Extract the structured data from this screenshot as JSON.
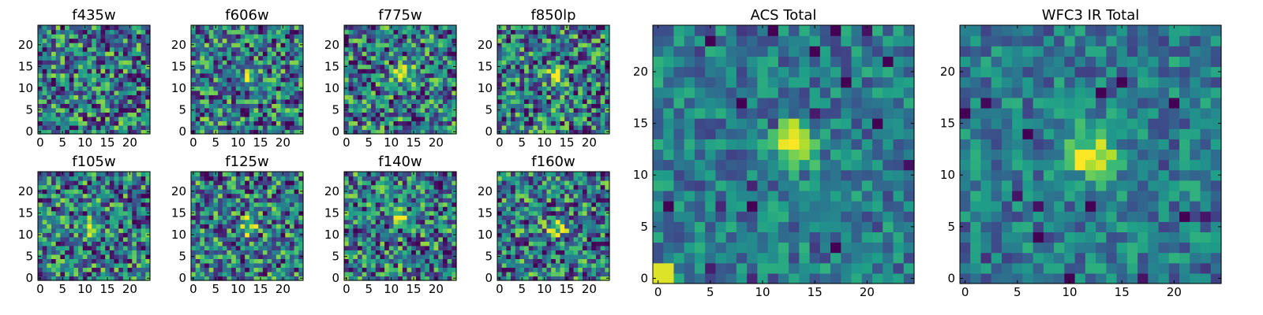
{
  "chart_data": [
    {
      "type": "heatmap",
      "title": "f435w",
      "colormap": "viridis",
      "xlim": [
        0,
        24
      ],
      "ylim": [
        0,
        24
      ],
      "xticks": [
        "0",
        "5",
        "10",
        "15",
        "20"
      ],
      "yticks": [
        "0",
        "5",
        "10",
        "15",
        "20"
      ],
      "source_peak": null
    },
    {
      "type": "heatmap",
      "title": "f606w",
      "colormap": "viridis",
      "xlim": [
        0,
        24
      ],
      "ylim": [
        0,
        24
      ],
      "xticks": [
        "0",
        "5",
        "10",
        "15",
        "20"
      ],
      "yticks": [
        "0",
        "5",
        "10",
        "15",
        "20"
      ],
      "source_peak": [
        13,
        13
      ]
    },
    {
      "type": "heatmap",
      "title": "f775w",
      "colormap": "viridis",
      "xlim": [
        0,
        24
      ],
      "ylim": [
        0,
        24
      ],
      "xticks": [
        "0",
        "5",
        "10",
        "15",
        "20"
      ],
      "yticks": [
        "0",
        "5",
        "10",
        "15",
        "20"
      ],
      "source_peak": [
        13,
        13
      ]
    },
    {
      "type": "heatmap",
      "title": "f850lp",
      "colormap": "viridis",
      "xlim": [
        0,
        24
      ],
      "ylim": [
        0,
        24
      ],
      "xticks": [
        "0",
        "5",
        "10",
        "15",
        "20"
      ],
      "yticks": [
        "0",
        "5",
        "10",
        "15",
        "20"
      ],
      "source_peak": [
        13,
        13
      ]
    },
    {
      "type": "heatmap",
      "title": "f105w",
      "colormap": "viridis",
      "xlim": [
        0,
        24
      ],
      "ylim": [
        0,
        24
      ],
      "xticks": [
        "0",
        "5",
        "10",
        "15",
        "20"
      ],
      "yticks": [
        "0",
        "5",
        "10",
        "15",
        "20"
      ],
      "source_peak": [
        12,
        12
      ]
    },
    {
      "type": "heatmap",
      "title": "f125w",
      "colormap": "viridis",
      "xlim": [
        0,
        24
      ],
      "ylim": [
        0,
        24
      ],
      "xticks": [
        "0",
        "5",
        "10",
        "15",
        "20"
      ],
      "yticks": [
        "0",
        "5",
        "10",
        "15",
        "20"
      ],
      "source_peak": [
        12,
        12
      ]
    },
    {
      "type": "heatmap",
      "title": "f140w",
      "colormap": "viridis",
      "xlim": [
        0,
        24
      ],
      "ylim": [
        0,
        24
      ],
      "xticks": [
        "0",
        "5",
        "10",
        "15",
        "20"
      ],
      "yticks": [
        "0",
        "5",
        "10",
        "15",
        "20"
      ],
      "source_peak": [
        12,
        13
      ]
    },
    {
      "type": "heatmap",
      "title": "f160w",
      "colormap": "viridis",
      "xlim": [
        0,
        24
      ],
      "ylim": [
        0,
        24
      ],
      "xticks": [
        "0",
        "5",
        "10",
        "15",
        "20"
      ],
      "yticks": [
        "0",
        "5",
        "10",
        "15",
        "20"
      ],
      "source_peak": [
        13,
        12
      ]
    },
    {
      "type": "heatmap",
      "title": "ACS Total",
      "colormap": "viridis",
      "xlim": [
        0,
        24
      ],
      "ylim": [
        0,
        24
      ],
      "xticks": [
        "0",
        "5",
        "10",
        "15",
        "20"
      ],
      "yticks": [
        "0",
        "5",
        "10",
        "15",
        "20"
      ],
      "source_peak": [
        13,
        13
      ]
    },
    {
      "type": "heatmap",
      "title": "WFC3 IR Total",
      "colormap": "viridis",
      "xlim": [
        0,
        24
      ],
      "ylim": [
        0,
        24
      ],
      "xticks": [
        "0",
        "5",
        "10",
        "15",
        "20"
      ],
      "yticks": [
        "0",
        "5",
        "10",
        "15",
        "20"
      ],
      "source_peak": [
        12,
        12
      ]
    }
  ],
  "colors": {
    "low": "#440154",
    "mid": "#21918c",
    "high": "#fde725"
  }
}
